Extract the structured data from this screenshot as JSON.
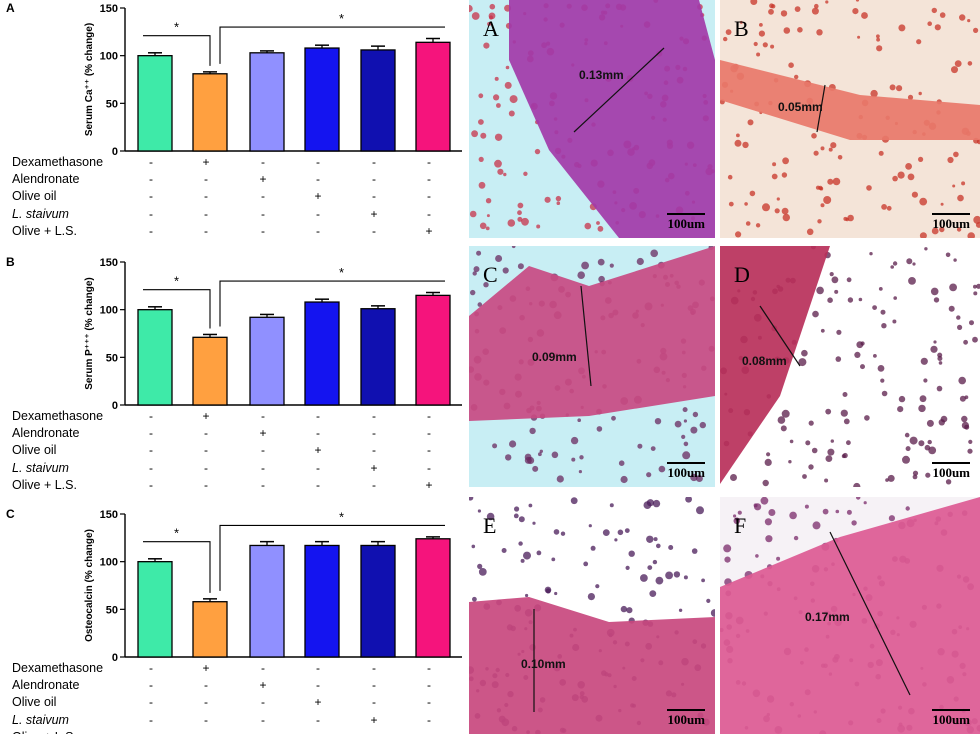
{
  "chart_data": [
    {
      "type": "bar",
      "panel_label": "A",
      "ylabel": "Serum Ca⁺⁺ (% change)",
      "ylim": [
        0,
        150
      ],
      "yticks": [
        "0",
        "50",
        "100",
        "150"
      ],
      "values": [
        100,
        81,
        103,
        108,
        106,
        114
      ],
      "errors": [
        3,
        2,
        2,
        3,
        4,
        4
      ],
      "colors": [
        "#3eeaa8",
        "#ffa040",
        "#9090ff",
        "#1414f0",
        "#1010b0",
        "#f5147c"
      ],
      "significance": [
        "*",
        "*"
      ],
      "treatment_table": {
        "rows": [
          "Dexamethasone",
          "Alendronate",
          "Olive oil",
          "L. staivum",
          "Olive + L.S."
        ],
        "row_italic": [
          false,
          false,
          false,
          true,
          false
        ],
        "signs": [
          [
            "-",
            "+",
            "-",
            "-",
            "-",
            "-"
          ],
          [
            "-",
            "-",
            "+",
            "-",
            "-",
            "-"
          ],
          [
            "-",
            "-",
            "-",
            "+",
            "-",
            "-"
          ],
          [
            "-",
            "-",
            "-",
            "-",
            "+",
            "-"
          ],
          [
            "-",
            "-",
            "-",
            "-",
            "-",
            "+"
          ]
        ]
      }
    },
    {
      "type": "bar",
      "panel_label": "B",
      "ylabel": "Serum P⁺⁺⁺ (% change)",
      "ylim": [
        0,
        150
      ],
      "yticks": [
        "0",
        "50",
        "100",
        "150"
      ],
      "values": [
        100,
        71,
        92,
        108,
        101,
        115
      ],
      "errors": [
        3,
        3,
        3,
        3,
        3,
        3
      ],
      "colors": [
        "#3eeaa8",
        "#ffa040",
        "#9090ff",
        "#1414f0",
        "#1010b0",
        "#f5147c"
      ],
      "significance": [
        "*",
        "*"
      ],
      "treatment_table": {
        "rows": [
          "Dexamethasone",
          "Alendronate",
          "Olive oil",
          "L. staivum",
          "Olive + L.S."
        ],
        "row_italic": [
          false,
          false,
          false,
          true,
          false
        ],
        "signs": [
          [
            "-",
            "+",
            "-",
            "-",
            "-",
            "-"
          ],
          [
            "-",
            "-",
            "+",
            "-",
            "-",
            "-"
          ],
          [
            "-",
            "-",
            "-",
            "+",
            "-",
            "-"
          ],
          [
            "-",
            "-",
            "-",
            "-",
            "+",
            "-"
          ],
          [
            "-",
            "-",
            "-",
            "-",
            "-",
            "+"
          ]
        ]
      }
    },
    {
      "type": "bar",
      "panel_label": "C",
      "ylabel": "Osteocalcin (% change)",
      "ylim": [
        0,
        150
      ],
      "yticks": [
        "0",
        "50",
        "100",
        "150"
      ],
      "values": [
        100,
        58,
        117,
        117,
        117,
        124
      ],
      "errors": [
        3,
        3,
        4,
        4,
        4,
        2
      ],
      "colors": [
        "#3eeaa8",
        "#ffa040",
        "#9090ff",
        "#1414f0",
        "#1010b0",
        "#f5147c"
      ],
      "significance": [
        "*",
        "*"
      ],
      "treatment_table": {
        "rows": [
          "Dexamethasone",
          "Alendronate",
          "Olive oil",
          "L. staivum",
          "Olive + L.S."
        ],
        "row_italic": [
          false,
          false,
          false,
          true,
          false
        ],
        "signs": [
          [
            "-",
            "+",
            "-",
            "-",
            "-",
            "-"
          ],
          [
            "-",
            "-",
            "+",
            "-",
            "-",
            "-"
          ],
          [
            "-",
            "-",
            "-",
            "+",
            "-",
            "-"
          ],
          [
            "-",
            "-",
            "-",
            "-",
            "+",
            "-"
          ],
          [
            "-",
            "-",
            "-",
            "-",
            "-",
            "+"
          ]
        ]
      }
    }
  ],
  "micrographs": [
    {
      "label": "A",
      "measurement": "0.13mm",
      "scale": "100um",
      "bg": "#c8eef4",
      "tissue": "#a23aa8",
      "cells": "#c8324a"
    },
    {
      "label": "B",
      "measurement": "0.05mm",
      "scale": "100um",
      "bg": "#f4e4d8",
      "tissue": "#e8786a",
      "cells": "#c83428"
    },
    {
      "label": "C",
      "measurement": "0.09mm",
      "scale": "100um",
      "bg": "#c8eef4",
      "tissue": "#c84a82",
      "cells": "#6a2a60"
    },
    {
      "label": "D",
      "measurement": "0.08mm",
      "scale": "100um",
      "bg": "#ffffff",
      "tissue": "#b8305a",
      "cells": "#5a1c4a"
    },
    {
      "label": "E",
      "measurement": "0.10mm",
      "scale": "100um",
      "bg": "#ffffff",
      "tissue": "#c8487e",
      "cells": "#4a1c5a"
    },
    {
      "label": "F",
      "measurement": "0.17mm",
      "scale": "100um",
      "bg": "#f6f2f6",
      "tissue": "#dc5a92",
      "cells": "#7a2a6a"
    }
  ]
}
